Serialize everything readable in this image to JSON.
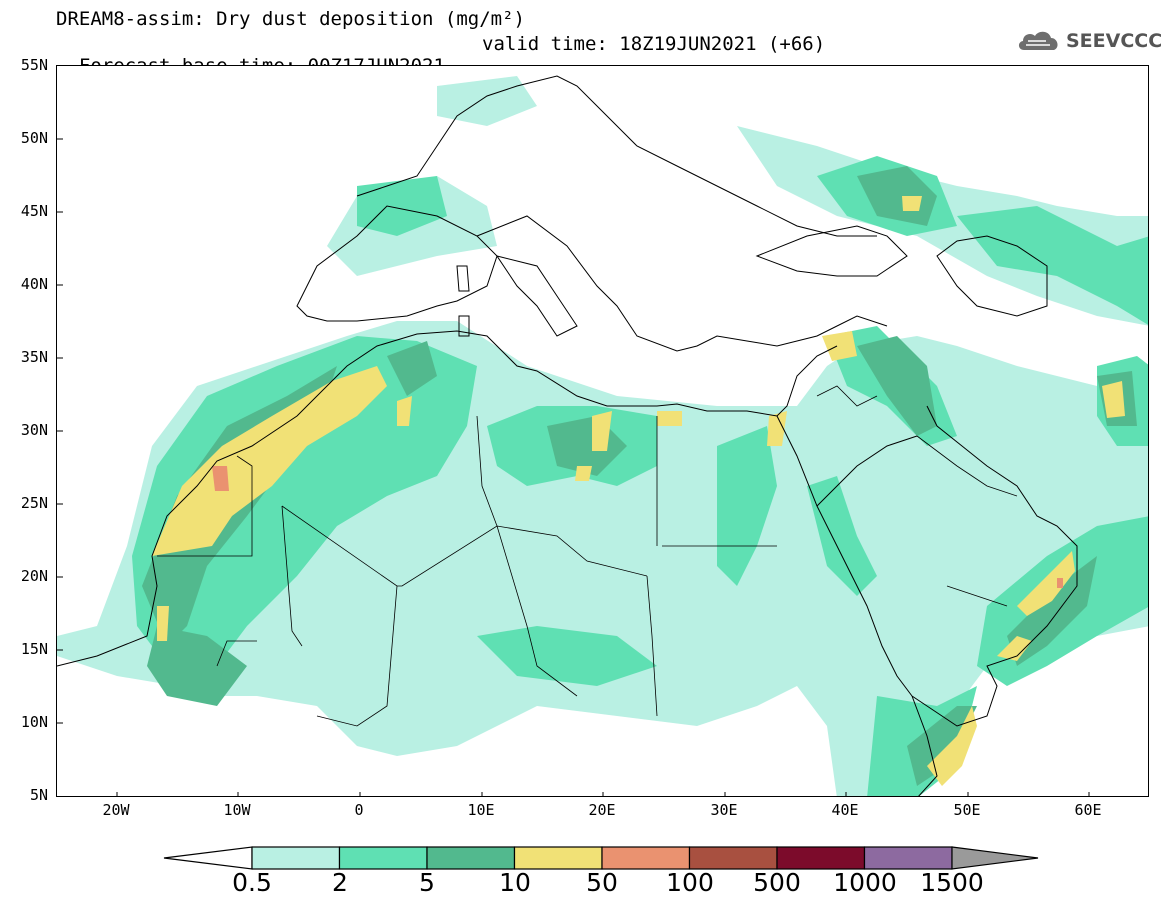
{
  "header": {
    "title_line1": "DREAM8-assim: Dry dust deposition (mg/m²)",
    "base_time": "Forecast base time: 00Z17JUN2021",
    "valid_time": "valid time: 18Z19JUN2021 (+66)"
  },
  "logo": {
    "text": "SEEVCCC",
    "icon": "cloud-logo-icon"
  },
  "axes": {
    "lat_labels": [
      "55N",
      "50N",
      "45N",
      "40N",
      "35N",
      "30N",
      "25N",
      "20N",
      "15N",
      "10N",
      "5N"
    ],
    "lon_labels": [
      "20W",
      "10W",
      "0",
      "10E",
      "20E",
      "30E",
      "40E",
      "50E",
      "60E"
    ]
  },
  "colorbar": {
    "labels": [
      "0.5",
      "2",
      "5",
      "10",
      "50",
      "100",
      "500",
      "1000",
      "1500"
    ],
    "colors": [
      "#b9f0e3",
      "#5fe0b3",
      "#52b98e",
      "#f1e176",
      "#ea9270",
      "#a85040",
      "#7c0b2b",
      "#8d6aa0"
    ],
    "over_color": "#9a9a9a",
    "under_color": "#ffffff"
  },
  "map": {
    "region": "North Africa, Europe, Middle East",
    "lon_range": [
      -25,
      65
    ],
    "lat_range": [
      5,
      55
    ]
  }
}
